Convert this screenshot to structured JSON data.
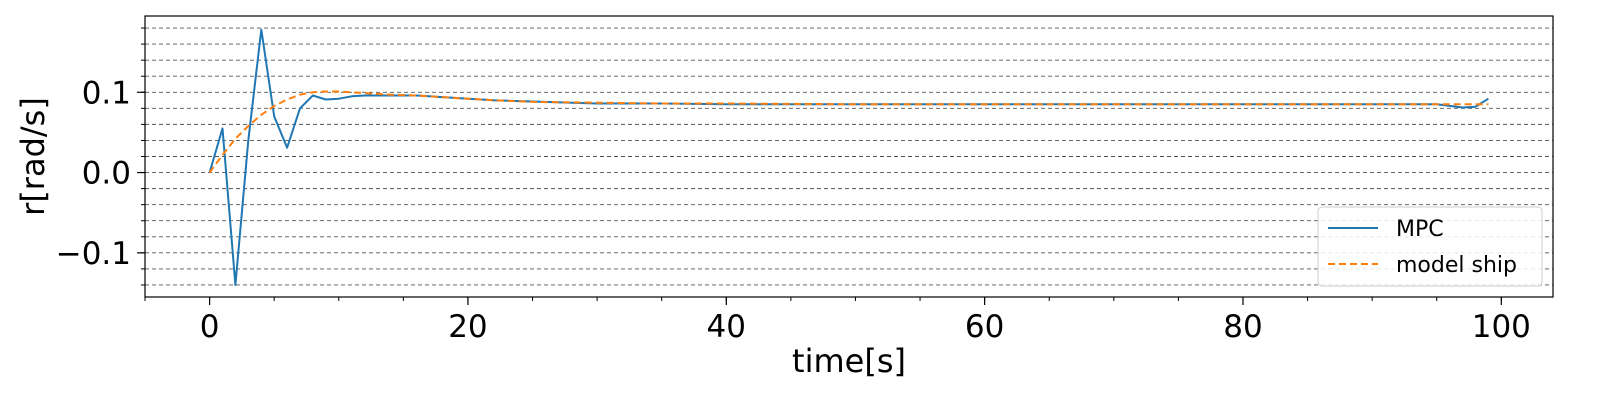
{
  "chart_data": {
    "type": "line",
    "title": "",
    "xlabel": "time[s]",
    "ylabel": "r[rad/s]",
    "xlim": [
      -5,
      104
    ],
    "ylim": [
      -0.155,
      0.195
    ],
    "xticks": [
      0,
      20,
      40,
      60,
      80,
      100
    ],
    "xtick_labels": [
      "0",
      "20",
      "40",
      "60",
      "80",
      "100"
    ],
    "x_minor_step": 5,
    "yticks": [
      -0.1,
      0.0,
      0.1
    ],
    "ytick_labels": [
      "−0.1",
      "0.0",
      "0.1"
    ],
    "y_minor_step": 0.02,
    "grid": "horizontal dashed at minor y ticks",
    "legend_position": "lower-right",
    "series": [
      {
        "name": "MPC",
        "color": "#1f77b4",
        "style": "solid",
        "x": [
          0,
          1,
          2,
          3,
          4,
          5,
          6,
          7,
          8,
          9,
          10,
          11,
          12,
          13,
          14,
          15,
          16,
          17,
          18,
          19,
          20,
          22,
          24,
          26,
          28,
          30,
          35,
          40,
          45,
          50,
          55,
          60,
          65,
          70,
          75,
          80,
          85,
          90,
          95,
          96,
          97,
          98,
          99
        ],
        "y": [
          0.0,
          0.055,
          -0.14,
          0.04,
          0.178,
          0.07,
          0.031,
          0.08,
          0.096,
          0.091,
          0.092,
          0.095,
          0.096,
          0.096,
          0.096,
          0.096,
          0.096,
          0.095,
          0.094,
          0.093,
          0.092,
          0.09,
          0.089,
          0.088,
          0.087,
          0.086,
          0.086,
          0.085,
          0.085,
          0.085,
          0.085,
          0.085,
          0.085,
          0.085,
          0.085,
          0.085,
          0.085,
          0.085,
          0.085,
          0.083,
          0.081,
          0.082,
          0.092
        ]
      },
      {
        "name": "model ship",
        "color": "#ff7f0e",
        "style": "dashed",
        "x": [
          0,
          1,
          2,
          3,
          4,
          5,
          6,
          7,
          8,
          9,
          10,
          11,
          12,
          14,
          16,
          18,
          20,
          22,
          25,
          30,
          35,
          40,
          50,
          60,
          70,
          80,
          90,
          95,
          99
        ],
        "y": [
          0.0,
          0.022,
          0.042,
          0.058,
          0.072,
          0.083,
          0.091,
          0.097,
          0.1,
          0.101,
          0.101,
          0.1,
          0.099,
          0.097,
          0.096,
          0.094,
          0.092,
          0.09,
          0.088,
          0.087,
          0.086,
          0.086,
          0.085,
          0.085,
          0.085,
          0.085,
          0.085,
          0.085,
          0.085
        ]
      }
    ]
  }
}
